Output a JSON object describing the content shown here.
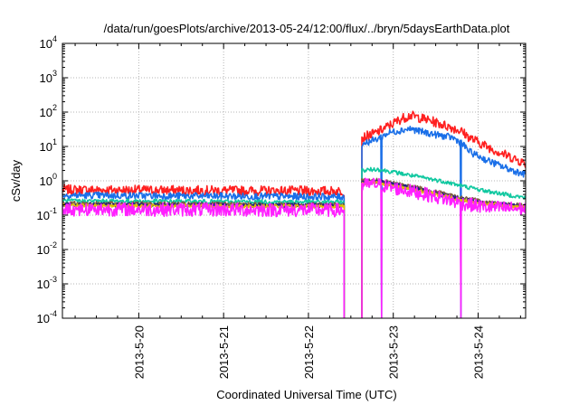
{
  "chart_data": {
    "type": "line",
    "title": "/data/run/goesPlots/archive/2013-05-24/12:00/flux/../bryn/5daysEarthData.plot",
    "xlabel": "Coordinated Universal Time (UTC)",
    "ylabel": "cSv/day",
    "yscale": "log",
    "ylim": [
      0.0001,
      10000
    ],
    "xlim": [
      19.1,
      24.56
    ],
    "grid": true,
    "legend": "none",
    "y_ticks": [
      {
        "base": "10",
        "exp": "-4",
        "value": 0.0001
      },
      {
        "base": "10",
        "exp": "-3",
        "value": 0.001
      },
      {
        "base": "10",
        "exp": "-2",
        "value": 0.01
      },
      {
        "base": "10",
        "exp": "-1",
        "value": 0.1
      },
      {
        "base": "10",
        "exp": "0",
        "value": 1
      },
      {
        "base": "10",
        "exp": "1",
        "value": 10
      },
      {
        "base": "10",
        "exp": "2",
        "value": 100
      },
      {
        "base": "10",
        "exp": "3",
        "value": 1000
      },
      {
        "base": "10",
        "exp": "4",
        "value": 10000
      }
    ],
    "x_ticks": [
      {
        "label": "2013-5-20",
        "value": 20
      },
      {
        "label": "2013-5-21",
        "value": 21
      },
      {
        "label": "2013-5-22",
        "value": 22
      },
      {
        "label": "2013-5-23",
        "value": 23
      },
      {
        "label": "2013-5-24",
        "value": 24
      }
    ],
    "gap": {
      "start": 22.42,
      "end": 22.63
    },
    "series": [
      {
        "color": "#ff2020",
        "noise": 0.14,
        "spike_drops": [],
        "points": [
          [
            19.1,
            0.55
          ],
          [
            22.42,
            0.5
          ],
          [
            22.63,
            18
          ],
          [
            22.8,
            25
          ],
          [
            22.95,
            40
          ],
          [
            23.1,
            65
          ],
          [
            23.2,
            80
          ],
          [
            23.3,
            70
          ],
          [
            23.5,
            50
          ],
          [
            23.7,
            35
          ],
          [
            23.8,
            28
          ],
          [
            23.9,
            18
          ],
          [
            24.1,
            10
          ],
          [
            24.3,
            6
          ],
          [
            24.56,
            3.2
          ]
        ]
      },
      {
        "color": "#1a6fe8",
        "noise": 0.1,
        "spike_drops": [
          22.86,
          23.8
        ],
        "points": [
          [
            19.1,
            0.38
          ],
          [
            22.42,
            0.34
          ],
          [
            22.63,
            12
          ],
          [
            22.8,
            16
          ],
          [
            22.95,
            25
          ],
          [
            23.1,
            30
          ],
          [
            23.2,
            33
          ],
          [
            23.3,
            28
          ],
          [
            23.5,
            22
          ],
          [
            23.7,
            18
          ],
          [
            23.8,
            13
          ],
          [
            23.9,
            7
          ],
          [
            24.1,
            4
          ],
          [
            24.3,
            2.5
          ],
          [
            24.56,
            1.5
          ]
        ]
      },
      {
        "color": "#10c8a0",
        "noise": 0.06,
        "spike_drops": [],
        "points": [
          [
            19.1,
            0.26
          ],
          [
            22.42,
            0.24
          ],
          [
            22.63,
            2.0
          ],
          [
            22.8,
            2.2
          ],
          [
            23.0,
            1.8
          ],
          [
            23.3,
            1.3
          ],
          [
            23.6,
            0.95
          ],
          [
            23.8,
            0.72
          ],
          [
            24.1,
            0.5
          ],
          [
            24.56,
            0.32
          ]
        ]
      },
      {
        "color": "#806040",
        "noise": 0.06,
        "spike_drops": [],
        "points": [
          [
            19.1,
            0.22
          ],
          [
            22.42,
            0.2
          ],
          [
            22.63,
            1.0
          ],
          [
            22.8,
            1.05
          ],
          [
            23.0,
            0.85
          ],
          [
            23.3,
            0.62
          ],
          [
            23.6,
            0.42
          ],
          [
            23.8,
            0.32
          ],
          [
            24.1,
            0.24
          ],
          [
            24.56,
            0.19
          ]
        ]
      },
      {
        "color": "#202080",
        "noise": 0.06,
        "spike_drops": [],
        "points": [
          [
            19.1,
            0.2
          ],
          [
            22.42,
            0.19
          ],
          [
            22.63,
            0.92
          ],
          [
            22.8,
            0.95
          ],
          [
            23.0,
            0.78
          ],
          [
            23.3,
            0.56
          ],
          [
            23.6,
            0.38
          ],
          [
            23.8,
            0.29
          ],
          [
            24.1,
            0.22
          ],
          [
            24.56,
            0.18
          ]
        ]
      },
      {
        "color": "#e0c000",
        "noise": 0.05,
        "spike_drops": [],
        "points": [
          [
            19.1,
            0.19
          ],
          [
            22.42,
            0.18
          ],
          [
            22.63,
            0.85
          ],
          [
            22.8,
            0.9
          ],
          [
            23.0,
            0.72
          ],
          [
            23.3,
            0.52
          ],
          [
            23.6,
            0.36
          ],
          [
            23.8,
            0.27
          ],
          [
            24.1,
            0.21
          ],
          [
            24.56,
            0.17
          ]
        ]
      },
      {
        "color": "#ff20ff",
        "noise": 0.2,
        "spike_drops": [
          22.86,
          23.8
        ],
        "points": [
          [
            19.1,
            0.15
          ],
          [
            22.42,
            0.14
          ],
          [
            22.63,
            0.75
          ],
          [
            22.8,
            0.8
          ],
          [
            23.0,
            0.62
          ],
          [
            23.3,
            0.45
          ],
          [
            23.6,
            0.3
          ],
          [
            23.8,
            0.22
          ],
          [
            24.1,
            0.17
          ],
          [
            24.56,
            0.15
          ]
        ]
      }
    ]
  }
}
